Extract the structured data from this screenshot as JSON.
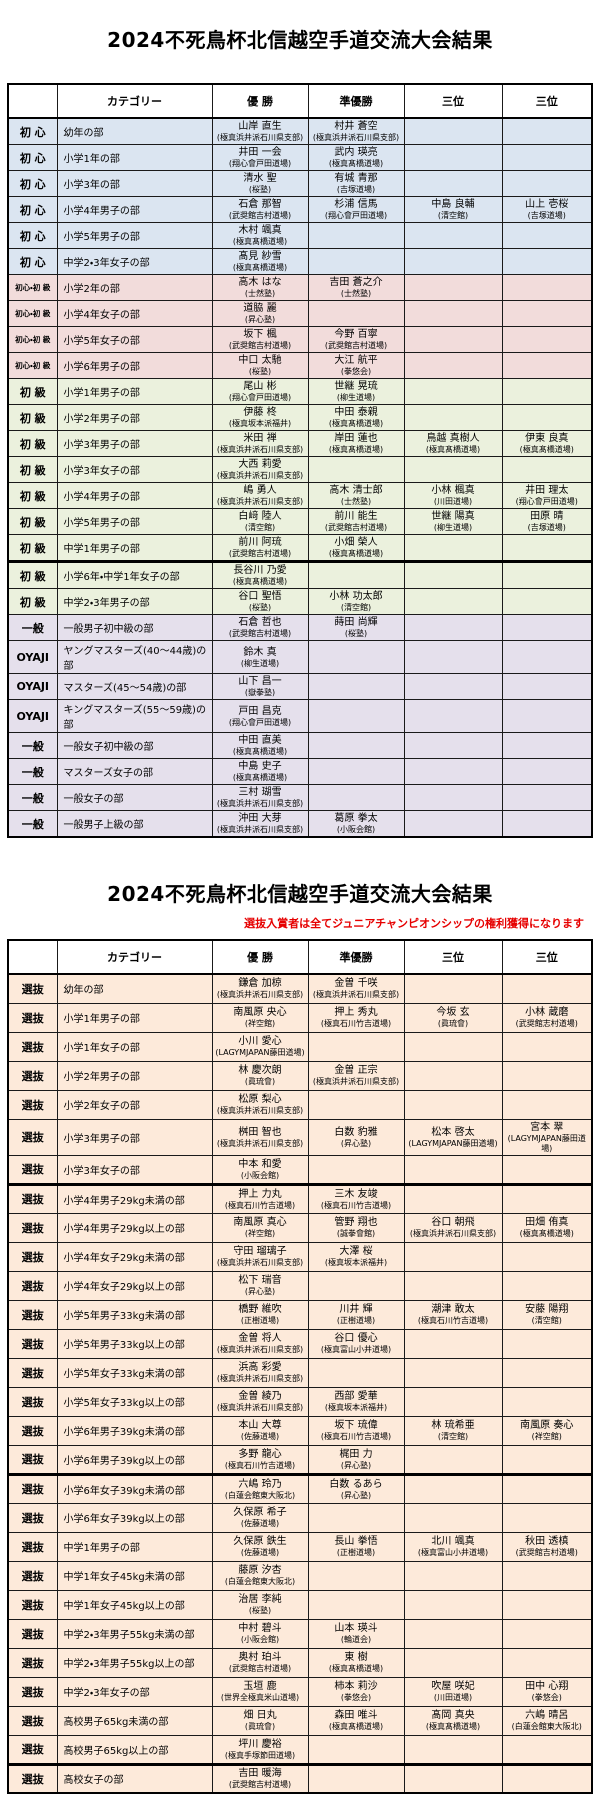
{
  "colors": {
    "note-red": "#e60000",
    "shoshin": "#dbe5f1",
    "konbi": "#f2dcdb",
    "shokyu": "#ebf1dd",
    "ippan": "#e5e0ec",
    "senbatsu": "#fdeada"
  },
  "table1": {
    "title": "2024不死鳥杯北信越空手道交流大会結果",
    "headers": [
      "",
      "カテゴリー",
      "優 勝",
      "準優勝",
      "三位",
      "三位"
    ],
    "rows": [
      {
        "group": "初 心",
        "style": "shoshin",
        "category": "幼年の部",
        "results": [
          [
            "山岸 直生",
            "(極真浜井派石川県支部)"
          ],
          [
            "村井 蒼空",
            "(極真浜井派石川県支部)"
          ],
          null,
          null
        ]
      },
      {
        "group": "初 心",
        "style": "shoshin",
        "category": "小学1年の部",
        "results": [
          [
            "井田 一会",
            "(翔心會戸田道場)"
          ],
          [
            "武内 瑛亮",
            "(極真髙橋道場)"
          ],
          null,
          null
        ]
      },
      {
        "group": "初 心",
        "style": "shoshin",
        "category": "小学3年の部",
        "results": [
          [
            "清水 聖",
            "(桜塾)"
          ],
          [
            "有城 青那",
            "(吉塚道場)"
          ],
          null,
          null
        ]
      },
      {
        "group": "初 心",
        "style": "shoshin",
        "category": "小学4年男子の部",
        "results": [
          [
            "石倉 那智",
            "(武奨館吉村道場)"
          ],
          [
            "杉浦 信馬",
            "(翔心會戸田道場)"
          ],
          [
            "中島 良輔",
            "(清空館)"
          ],
          [
            "山上 壱桜",
            "(吉塚道場)"
          ]
        ]
      },
      {
        "group": "初 心",
        "style": "shoshin",
        "category": "小学5年男子の部",
        "results": [
          [
            "木村 颯真",
            "(極真髙橋道場)"
          ],
          null,
          null,
          null
        ]
      },
      {
        "group": "初 心",
        "style": "shoshin",
        "category": "中学2・3年女子の部",
        "results": [
          [
            "髙見 紗雪",
            "(極真髙橋道場)"
          ],
          null,
          null,
          null
        ]
      },
      {
        "group": "初心・初 級",
        "style": "konbi",
        "category": "小学2年の部",
        "results": [
          [
            "高木 はな",
            "(士然塾)"
          ],
          [
            "吉田 蒼之介",
            "(士然塾)"
          ],
          null,
          null
        ]
      },
      {
        "group": "初心・初 級",
        "style": "konbi",
        "category": "小学4年女子の部",
        "results": [
          [
            "道脇 麗",
            "(昇心塾)"
          ],
          null,
          null,
          null
        ]
      },
      {
        "group": "初心・初 級",
        "style": "konbi",
        "category": "小学5年女子の部",
        "results": [
          [
            "坂下 楓",
            "(武奨館吉村道場)"
          ],
          [
            "今野 百寧",
            "(武奨館吉村道場)"
          ],
          null,
          null
        ]
      },
      {
        "group": "初心・初 級",
        "style": "konbi",
        "category": "小学6年男子の部",
        "results": [
          [
            "中口 太馳",
            "(桜塾)"
          ],
          [
            "大江 航平",
            "(拳悠会)"
          ],
          null,
          null
        ]
      },
      {
        "group": "初 級",
        "style": "shokyu",
        "category": "小学1年男子の部",
        "results": [
          [
            "尾山 彬",
            "(翔心會戸田道場)"
          ],
          [
            "世継 晃琉",
            "(柳生道場)"
          ],
          null,
          null
        ]
      },
      {
        "group": "初 級",
        "style": "shokyu",
        "category": "小学2年男子の部",
        "results": [
          [
            "伊藤 柊",
            "(極真坂本派福井)"
          ],
          [
            "中田 泰親",
            "(極真髙橋道場)"
          ],
          null,
          null
        ]
      },
      {
        "group": "初 級",
        "style": "shokyu",
        "category": "小学3年男子の部",
        "results": [
          [
            "米田 禅",
            "(極真浜井派石川県支部)"
          ],
          [
            "岸田 蓮也",
            "(極真髙橋道場)"
          ],
          [
            "鳥越 真樹人",
            "(極真髙橋道場)"
          ],
          [
            "伊東 良真",
            "(極真髙橋道場)"
          ]
        ]
      },
      {
        "group": "初 級",
        "style": "shokyu",
        "category": "小学3年女子の部",
        "results": [
          [
            "大西 莉愛",
            "(極真浜井派石川県支部)"
          ],
          null,
          null,
          null
        ]
      },
      {
        "group": "初 級",
        "style": "shokyu",
        "category": "小学4年男子の部",
        "results": [
          [
            "嶋 勇人",
            "(極真浜井派石川県支部)"
          ],
          [
            "高木 清士郎",
            "(士然塾)"
          ],
          [
            "小林 楓真",
            "(川田道場)"
          ],
          [
            "井田 理太",
            "(翔心會戸田道場)"
          ]
        ]
      },
      {
        "group": "初 級",
        "style": "shokyu",
        "category": "小学5年男子の部",
        "results": [
          [
            "白﨑 陸人",
            "(清空館)"
          ],
          [
            "前川 能生",
            "(武奨館吉村道場)"
          ],
          [
            "世継 陽真",
            "(柳生道場)"
          ],
          [
            "田原 晴",
            "(吉塚道場)"
          ]
        ]
      },
      {
        "group": "初 級",
        "style": "shokyu",
        "category": "中学1年男子の部",
        "results": [
          [
            "前川 阿琉",
            "(武奨館吉村道場)"
          ],
          [
            "小畑 榮人",
            "(極真髙橋道場)"
          ],
          null,
          null
        ]
      },
      {
        "group": "初 級",
        "style": "shokyu",
        "category": "小学6年・中学1年女子の部",
        "sep": true,
        "results": [
          [
            "長谷川 乃愛",
            "(極真髙橋道場)"
          ],
          null,
          null,
          null
        ]
      },
      {
        "group": "初 級",
        "style": "shokyu",
        "category": "中学2・3年男子の部",
        "results": [
          [
            "谷口 聖悟",
            "(桜塾)"
          ],
          [
            "小林 功太郎",
            "(清空館)"
          ],
          null,
          null
        ]
      },
      {
        "group": "一般",
        "style": "ippan",
        "category": "一般男子初中級の部",
        "results": [
          [
            "石倉 哲也",
            "(武奨館吉村道場)"
          ],
          [
            "蒔田 尚輝",
            "(桜塾)"
          ],
          null,
          null
        ]
      },
      {
        "group": "OYAJI",
        "style": "ippan",
        "category": "ヤングマスターズ(40～44歳)の部",
        "results": [
          [
            "鈴木 真",
            "(柳生道場)"
          ],
          null,
          null,
          null
        ]
      },
      {
        "group": "OYAJI",
        "style": "ippan",
        "category": "マスターズ(45～54歳)の部",
        "results": [
          [
            "山下 昌一",
            "(嶽拳塾)"
          ],
          null,
          null,
          null
        ]
      },
      {
        "group": "OYAJI",
        "style": "ippan",
        "category": "キングマスターズ(55～59歳)の部",
        "results": [
          [
            "戸田 昌克",
            "(翔心會戸田道場)"
          ],
          null,
          null,
          null
        ]
      },
      {
        "group": "一般",
        "style": "ippan",
        "category": "一般女子初中級の部",
        "results": [
          [
            "中田 直美",
            "(極真髙橋道場)"
          ],
          null,
          null,
          null
        ]
      },
      {
        "group": "一般",
        "style": "ippan",
        "category": "マスターズ女子の部",
        "results": [
          [
            "中島 史子",
            "(極真髙橋道場)"
          ],
          null,
          null,
          null
        ]
      },
      {
        "group": "一般",
        "style": "ippan",
        "category": "一般女子の部",
        "results": [
          [
            "三村 瑚雪",
            "(極真浜井派石川県支部)"
          ],
          null,
          null,
          null
        ]
      },
      {
        "group": "一般",
        "style": "ippan",
        "category": "一般男子上級の部",
        "results": [
          [
            "沖田 大芽",
            "(極真浜井派石川県支部)"
          ],
          [
            "葛原 拳太",
            "(小阪会館)"
          ],
          null,
          null
        ]
      }
    ]
  },
  "table2": {
    "title": "2024不死鳥杯北信越空手道交流大会結果",
    "note": "選抜入賞者は全てジュニアチャンピオンシップの権利獲得になります",
    "headers": [
      "",
      "カテゴリー",
      "優 勝",
      "準優勝",
      "三位",
      "三位"
    ],
    "rows": [
      {
        "group": "選抜",
        "style": "senbatsu",
        "category": "幼年の部",
        "results": [
          [
            "鎌倉 加椋",
            "(極真浜井派石川県支部)"
          ],
          [
            "金曽 千咲",
            "(極真浜井派石川県支部)"
          ],
          null,
          null
        ]
      },
      {
        "group": "選抜",
        "style": "senbatsu",
        "category": "小学1年男子の部",
        "results": [
          [
            "南風原 央心",
            "(祥空館)"
          ],
          [
            "押上 秀丸",
            "(極真石川竹吉道場)"
          ],
          [
            "今坂 玄",
            "(眞琉會)"
          ],
          [
            "小林 蔵磨",
            "(武奨館志村道場)"
          ]
        ]
      },
      {
        "group": "選抜",
        "style": "senbatsu",
        "category": "小学1年女子の部",
        "results": [
          [
            "小川 愛心",
            "(LAGYMJAPAN藤田道場)"
          ],
          null,
          null,
          null
        ]
      },
      {
        "group": "選抜",
        "style": "senbatsu",
        "category": "小学2年男子の部",
        "results": [
          [
            "林 慶次朗",
            "(眞琉會)"
          ],
          [
            "金曽 正宗",
            "(極真浜井派石川県支部)"
          ],
          null,
          null
        ]
      },
      {
        "group": "選抜",
        "style": "senbatsu",
        "category": "小学2年女子の部",
        "results": [
          [
            "松原 梨心",
            "(極真浜井派石川県支部)"
          ],
          null,
          null,
          null
        ]
      },
      {
        "group": "選抜",
        "style": "senbatsu",
        "category": "小学3年男子の部",
        "results": [
          [
            "桝田 智也",
            "(極真浜井派石川県支部)"
          ],
          [
            "白数 豹雅",
            "(昇心塾)"
          ],
          [
            "松本 啓太",
            "(LAGYMJAPAN藤田道場)"
          ],
          [
            "宮本 翠",
            "(LAGYMJAPAN藤田道場)"
          ]
        ]
      },
      {
        "group": "選抜",
        "style": "senbatsu",
        "category": "小学3年女子の部",
        "results": [
          [
            "中本 和愛",
            "(小阪会館)"
          ],
          null,
          null,
          null
        ]
      },
      {
        "group": "選抜",
        "style": "senbatsu",
        "category": "小学4年男子29kg未満の部",
        "sep": true,
        "results": [
          [
            "押上 力丸",
            "(極真石川竹吉道場)"
          ],
          [
            "三木 友竣",
            "(極真石川竹吉道場)"
          ],
          null,
          null
        ]
      },
      {
        "group": "選抜",
        "style": "senbatsu",
        "category": "小学4年男子29kg以上の部",
        "results": [
          [
            "南風原 真心",
            "(祥空館)"
          ],
          [
            "管野 翔也",
            "(誠拳會館)"
          ],
          [
            "谷口 朝飛",
            "(極真浜井派石川県支部)"
          ],
          [
            "田畑 侑真",
            "(極真髙橋道場)"
          ]
        ]
      },
      {
        "group": "選抜",
        "style": "senbatsu",
        "category": "小学4年女子29kg未満の部",
        "results": [
          [
            "守田 瑠璃子",
            "(極真浜井派石川県支部)"
          ],
          [
            "大澤 桜",
            "(極真坂本派福井)"
          ],
          null,
          null
        ]
      },
      {
        "group": "選抜",
        "style": "senbatsu",
        "category": "小学4年女子29kg以上の部",
        "results": [
          [
            "松下 瑞音",
            "(昇心塾)"
          ],
          null,
          null,
          null
        ]
      },
      {
        "group": "選抜",
        "style": "senbatsu",
        "category": "小学5年男子33kg未満の部",
        "results": [
          [
            "橋野 維吹",
            "(正樹道場)"
          ],
          [
            "川井 輝",
            "(正樹道場)"
          ],
          [
            "潮津 敢太",
            "(極真石川竹吉道場)"
          ],
          [
            "安藤 陽翔",
            "(清空館)"
          ]
        ]
      },
      {
        "group": "選抜",
        "style": "senbatsu",
        "category": "小学5年男子33kg以上の部",
        "results": [
          [
            "金曽 将人",
            "(極真浜井派石川県支部)"
          ],
          [
            "谷口 優心",
            "(極真富山小井道場)"
          ],
          null,
          null
        ]
      },
      {
        "group": "選抜",
        "style": "senbatsu",
        "category": "小学5年女子33kg未満の部",
        "results": [
          [
            "浜高 彩愛",
            "(極真浜井派石川県支部)"
          ],
          null,
          null,
          null
        ]
      },
      {
        "group": "選抜",
        "style": "senbatsu",
        "category": "小学5年女子33kg以上の部",
        "results": [
          [
            "金曽 綾乃",
            "(極真浜井派石川県支部)"
          ],
          [
            "西部 愛華",
            "(極真坂本派福井)"
          ],
          null,
          null
        ]
      },
      {
        "group": "選抜",
        "style": "senbatsu",
        "category": "小学6年男子39kg未満の部",
        "results": [
          [
            "本山 大尊",
            "(佐藤道場)"
          ],
          [
            "坂下 琉偉",
            "(極真石川竹吉道場)"
          ],
          [
            "林 琉希亜",
            "(清空館)"
          ],
          [
            "南風原 奏心",
            "(祥空館)"
          ]
        ]
      },
      {
        "group": "選抜",
        "style": "senbatsu",
        "category": "小学6年男子39kg以上の部",
        "results": [
          [
            "多野 龍心",
            "(極真石川竹吉道場)"
          ],
          [
            "梶田 力",
            "(昇心塾)"
          ],
          null,
          null
        ]
      },
      {
        "group": "選抜",
        "style": "senbatsu",
        "category": "小学6年女子39kg未満の部",
        "sep": true,
        "results": [
          [
            "六嶋 玲乃",
            "(白蓮会館東大阪北)"
          ],
          [
            "白数 るあら",
            "(昇心塾)"
          ],
          null,
          null
        ]
      },
      {
        "group": "選抜",
        "style": "senbatsu",
        "category": "小学6年女子39kg以上の部",
        "results": [
          [
            "久保原 希子",
            "(佐藤道場)"
          ],
          null,
          null,
          null
        ]
      },
      {
        "group": "選抜",
        "style": "senbatsu",
        "category": "中学1年男子の部",
        "results": [
          [
            "久保原 鉄生",
            "(佐藤道場)"
          ],
          [
            "長山 拳悟",
            "(正樹道場)"
          ],
          [
            "北川 颯真",
            "(極真富山小井道場)"
          ],
          [
            "秋田 透槙",
            "(武奨館吉村道場)"
          ]
        ]
      },
      {
        "group": "選抜",
        "style": "senbatsu",
        "category": "中学1年女子45kg未満の部",
        "results": [
          [
            "藤原 汐杏",
            "(白蓮会館東大阪北)"
          ],
          null,
          null,
          null
        ]
      },
      {
        "group": "選抜",
        "style": "senbatsu",
        "category": "中学1年女子45kg以上の部",
        "results": [
          [
            "治居 李純",
            "(桜塾)"
          ],
          null,
          null,
          null
        ]
      },
      {
        "group": "選抜",
        "style": "senbatsu",
        "category": "中学2・3年男子55kg未満の部",
        "results": [
          [
            "中村 碧斗",
            "(小阪会館)"
          ],
          [
            "山本 瑛斗",
            "(輪道会)"
          ],
          null,
          null
        ]
      },
      {
        "group": "選抜",
        "style": "senbatsu",
        "category": "中学2・3年男子55kg以上の部",
        "results": [
          [
            "奥村 珀斗",
            "(武奨館吉村道場)"
          ],
          [
            "東 樹",
            "(極真髙橋道場)"
          ],
          null,
          null
        ]
      },
      {
        "group": "選抜",
        "style": "senbatsu",
        "category": "中学2・3年女子の部",
        "results": [
          [
            "玉垣 鹿",
            "(世界全極真米山道場)"
          ],
          [
            "柿本 莉沙",
            "(拳悠会)"
          ],
          [
            "吹屋 咲妃",
            "(川田道場)"
          ],
          [
            "田中 心翔",
            "(拳悠会)"
          ]
        ]
      },
      {
        "group": "選抜",
        "style": "senbatsu",
        "category": "高校男子65kg未満の部",
        "results": [
          [
            "畑 日丸",
            "(眞琉會)"
          ],
          [
            "森田 唯斗",
            "(極真髙橋道場)"
          ],
          [
            "髙岡 真央",
            "(極真髙橋道場)"
          ],
          [
            "六嶋 晴呂",
            "(白蓮会館東大阪北)"
          ]
        ]
      },
      {
        "group": "選抜",
        "style": "senbatsu",
        "category": "高校男子65kg以上の部",
        "results": [
          [
            "坪川 慶裕",
            "(極真手塚節田道場)"
          ],
          null,
          null,
          null
        ]
      },
      {
        "group": "選抜",
        "style": "senbatsu",
        "category": "高校女子の部",
        "sep": true,
        "results": [
          [
            "吉田 暖海",
            "(武奨館吉村道場)"
          ],
          null,
          null,
          null
        ]
      }
    ]
  }
}
